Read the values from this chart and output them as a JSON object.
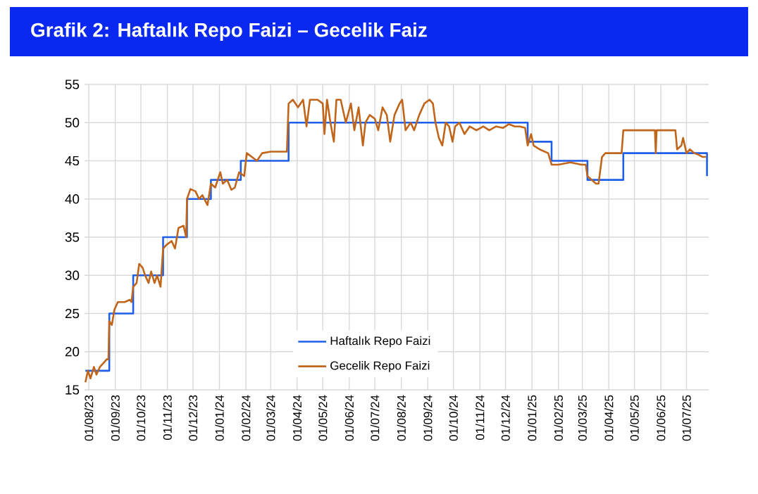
{
  "chart_data": {
    "type": "line",
    "title": "Grafik 2: Haftalık Repo Faizi – Gecelik Faiz",
    "xlim": [
      "2023-07-27",
      "2025-07-27"
    ],
    "xticks": [
      {
        "value": "2023-08-01",
        "label": "01/08/23"
      },
      {
        "value": "2023-09-01",
        "label": "01/09/23"
      },
      {
        "value": "2023-10-01",
        "label": "01/10/23"
      },
      {
        "value": "2023-11-01",
        "label": "01/11/23"
      },
      {
        "value": "2023-12-01",
        "label": "01/12/23"
      },
      {
        "value": "2024-01-01",
        "label": "01/01/24"
      },
      {
        "value": "2024-02-01",
        "label": "01/02/24"
      },
      {
        "value": "2024-03-01",
        "label": "01/03/24"
      },
      {
        "value": "2024-04-01",
        "label": "01/04/24"
      },
      {
        "value": "2024-05-01",
        "label": "01/05/24"
      },
      {
        "value": "2024-06-01",
        "label": "01/06/24"
      },
      {
        "value": "2024-07-01",
        "label": "01/07/24"
      },
      {
        "value": "2024-08-01",
        "label": "01/08/24"
      },
      {
        "value": "2024-09-01",
        "label": "01/09/24"
      },
      {
        "value": "2024-10-01",
        "label": "01/10/24"
      },
      {
        "value": "2024-11-01",
        "label": "01/11/24"
      },
      {
        "value": "2024-12-01",
        "label": "01/12/24"
      },
      {
        "value": "2025-01-01",
        "label": "01/01/25"
      },
      {
        "value": "2025-02-01",
        "label": "01/02/25"
      },
      {
        "value": "2025-03-01",
        "label": "01/03/25"
      },
      {
        "value": "2025-04-01",
        "label": "01/04/25"
      },
      {
        "value": "2025-05-01",
        "label": "01/05/25"
      },
      {
        "value": "2025-06-01",
        "label": "01/06/25"
      },
      {
        "value": "2025-07-01",
        "label": "01/07/25"
      }
    ],
    "ylim": [
      15,
      55
    ],
    "yticks": [
      15,
      20,
      25,
      30,
      35,
      40,
      45,
      50,
      55
    ],
    "grid": true,
    "legend": "bottom",
    "series": [
      {
        "name": "Haftalık Repo Faizi",
        "type": "step",
        "color": "#1f5fe8",
        "x": [
          "2023-07-28",
          "2023-08-25",
          "2023-09-22",
          "2023-10-27",
          "2023-11-24",
          "2023-12-22",
          "2024-01-26",
          "2024-03-22",
          "2024-12-27",
          "2025-01-24",
          "2025-03-07",
          "2025-04-18",
          "2025-07-25"
        ],
        "values": [
          17.5,
          25,
          30,
          35,
          40,
          42.5,
          45,
          50,
          47.5,
          45,
          42.5,
          46,
          43
        ]
      },
      {
        "name": "Gecelik Repo Faizi",
        "color": "#c0651a",
        "x": [
          "2023-07-28",
          "2023-07-31",
          "2023-08-03",
          "2023-08-07",
          "2023-08-10",
          "2023-08-14",
          "2023-08-18",
          "2023-08-22",
          "2023-08-24",
          "2023-08-25",
          "2023-08-28",
          "2023-08-31",
          "2023-09-04",
          "2023-09-12",
          "2023-09-18",
          "2023-09-20",
          "2023-09-22",
          "2023-09-26",
          "2023-09-29",
          "2023-10-03",
          "2023-10-06",
          "2023-10-10",
          "2023-10-13",
          "2023-10-17",
          "2023-10-20",
          "2023-10-24",
          "2023-10-27",
          "2023-10-31",
          "2023-11-06",
          "2023-11-10",
          "2023-11-14",
          "2023-11-20",
          "2023-11-23",
          "2023-11-24",
          "2023-11-28",
          "2023-12-04",
          "2023-12-08",
          "2023-12-12",
          "2023-12-18",
          "2023-12-22",
          "2023-12-27",
          "2024-01-02",
          "2024-01-05",
          "2024-01-10",
          "2024-01-15",
          "2024-01-19",
          "2024-01-24",
          "2024-01-30",
          "2024-02-02",
          "2024-02-08",
          "2024-02-14",
          "2024-02-20",
          "2024-03-01",
          "2024-03-20",
          "2024-03-22",
          "2024-03-27",
          "2024-04-02",
          "2024-04-08",
          "2024-04-12",
          "2024-04-16",
          "2024-04-25",
          "2024-05-01",
          "2024-05-03",
          "2024-05-06",
          "2024-05-10",
          "2024-05-14",
          "2024-05-17",
          "2024-05-22",
          "2024-05-28",
          "2024-06-03",
          "2024-06-07",
          "2024-06-12",
          "2024-06-17",
          "2024-06-20",
          "2024-06-25",
          "2024-07-01",
          "2024-07-05",
          "2024-07-10",
          "2024-07-15",
          "2024-07-19",
          "2024-07-24",
          "2024-07-30",
          "2024-08-02",
          "2024-08-06",
          "2024-08-12",
          "2024-08-16",
          "2024-08-22",
          "2024-08-28",
          "2024-09-03",
          "2024-09-07",
          "2024-09-10",
          "2024-09-14",
          "2024-09-18",
          "2024-09-22",
          "2024-09-26",
          "2024-09-30",
          "2024-10-03",
          "2024-10-08",
          "2024-10-14",
          "2024-10-20",
          "2024-10-28",
          "2024-11-05",
          "2024-11-12",
          "2024-11-20",
          "2024-11-28",
          "2024-12-05",
          "2024-12-12",
          "2024-12-18",
          "2024-12-24",
          "2024-12-27",
          "2024-12-31",
          "2025-01-03",
          "2025-01-10",
          "2025-01-20",
          "2025-01-24",
          "2025-02-01",
          "2025-02-15",
          "2025-02-28",
          "2025-03-05",
          "2025-03-07",
          "2025-03-12",
          "2025-03-17",
          "2025-03-20",
          "2025-03-24",
          "2025-03-28",
          "2025-04-10",
          "2025-04-16",
          "2025-04-18",
          "2025-05-01",
          "2025-05-25",
          "2025-05-26",
          "2025-05-27",
          "2025-06-10",
          "2025-06-18",
          "2025-06-20",
          "2025-06-25",
          "2025-06-27",
          "2025-07-01",
          "2025-07-05",
          "2025-07-10",
          "2025-07-15",
          "2025-07-20",
          "2025-07-24"
        ],
        "values": [
          16,
          17.5,
          16.5,
          18,
          17,
          18,
          18.5,
          19,
          19,
          24,
          23.5,
          25.5,
          26.5,
          26.5,
          26.8,
          26.5,
          28.5,
          29,
          31.5,
          31,
          30,
          29,
          30.5,
          29,
          30,
          28.5,
          33.5,
          34,
          34.5,
          33.5,
          36.2,
          36.5,
          35,
          40,
          41.3,
          41,
          40,
          40.5,
          39.2,
          42,
          41.5,
          43.5,
          42,
          42.5,
          41.2,
          41.5,
          43.5,
          43,
          46,
          45.5,
          45,
          46,
          46.2,
          46.2,
          52.5,
          53,
          52,
          53,
          49.5,
          53,
          53,
          52.5,
          48.5,
          53,
          50,
          47.5,
          53,
          53,
          50,
          52.5,
          49,
          52,
          47,
          50,
          51,
          50.5,
          49,
          52,
          51,
          47.5,
          51,
          52.5,
          53,
          49,
          50,
          49,
          51,
          52.5,
          53,
          52.5,
          50,
          48,
          47,
          50,
          49.5,
          47.5,
          49.5,
          50,
          48.5,
          49.5,
          49,
          49.5,
          49,
          49.5,
          49.3,
          49.8,
          49.5,
          49.5,
          49.3,
          47,
          48.5,
          47,
          46.5,
          46,
          44.5,
          44.5,
          44.8,
          44.5,
          44.5,
          43,
          42.5,
          42,
          42,
          45.5,
          46,
          46,
          46,
          49,
          49,
          49,
          46,
          49,
          49,
          49,
          46.5,
          47,
          48,
          46,
          46.5,
          46,
          45.8,
          45.5,
          45.5
        ]
      }
    ]
  }
}
